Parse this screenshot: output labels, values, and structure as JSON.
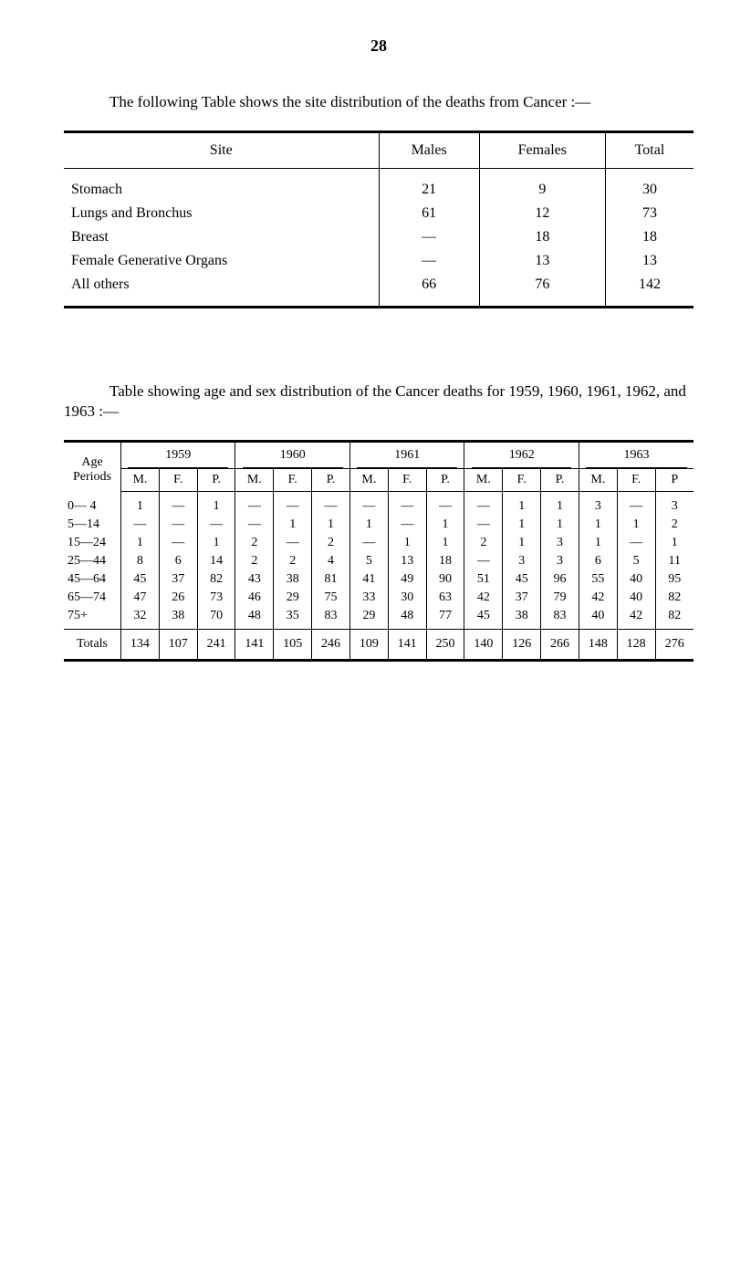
{
  "page_number": "28",
  "intro1": "The following Table shows the site distribution of the deaths from Cancer :—",
  "table1": {
    "headers": {
      "site": "Site",
      "males": "Males",
      "females": "Females",
      "total": "Total"
    },
    "rows": [
      {
        "site": "Stomach",
        "males": "21",
        "females": "9",
        "total": "30"
      },
      {
        "site": "Lungs and Bronchus",
        "males": "61",
        "females": "12",
        "total": "73"
      },
      {
        "site": "Breast",
        "males": "—",
        "females": "18",
        "total": "18"
      },
      {
        "site": "Female Generative Organs",
        "males": "—",
        "females": "13",
        "total": "13"
      },
      {
        "site": "All others",
        "males": "66",
        "females": "76",
        "total": "142"
      }
    ]
  },
  "intro2": "Table showing age and sex distribution of the Cancer deaths for 1959, 1960, 1961, 1962, and 1963 :—",
  "table2": {
    "age_header": "Age Periods",
    "years": [
      "1959",
      "1960",
      "1961",
      "1962",
      "1963"
    ],
    "sub_headers": [
      "M.",
      "F.",
      "P.",
      "M.",
      "F.",
      "P.",
      "M.",
      "F.",
      "P.",
      "M.",
      "F.",
      "P.",
      "M.",
      "F.",
      "P"
    ],
    "rows": [
      {
        "age": "0— 4",
        "cells": [
          "1",
          "—",
          "1",
          "—",
          "—",
          "—",
          "—",
          "—",
          "—",
          "—",
          "1",
          "1",
          "3",
          "—",
          "3"
        ]
      },
      {
        "age": "5—14",
        "cells": [
          "—",
          "—",
          "—",
          "—",
          "1",
          "1",
          "1",
          "—",
          "1",
          "—",
          "1",
          "1",
          "1",
          "1",
          "2"
        ]
      },
      {
        "age": "15—24",
        "cells": [
          "1",
          "—",
          "1",
          "2",
          "—",
          "2",
          "—",
          "1",
          "1",
          "2",
          "1",
          "3",
          "1",
          "—",
          "1"
        ]
      },
      {
        "age": "25—44",
        "cells": [
          "8",
          "6",
          "14",
          "2",
          "2",
          "4",
          "5",
          "13",
          "18",
          "—",
          "3",
          "3",
          "6",
          "5",
          "11"
        ]
      },
      {
        "age": "45—64",
        "cells": [
          "45",
          "37",
          "82",
          "43",
          "38",
          "81",
          "41",
          "49",
          "90",
          "51",
          "45",
          "96",
          "55",
          "40",
          "95"
        ]
      },
      {
        "age": "65—74",
        "cells": [
          "47",
          "26",
          "73",
          "46",
          "29",
          "75",
          "33",
          "30",
          "63",
          "42",
          "37",
          "79",
          "42",
          "40",
          "82"
        ]
      },
      {
        "age": "75+",
        "cells": [
          "32",
          "38",
          "70",
          "48",
          "35",
          "83",
          "29",
          "48",
          "77",
          "45",
          "38",
          "83",
          "40",
          "42",
          "82"
        ]
      }
    ],
    "totals_label": "Totals",
    "totals": [
      "134",
      "107",
      "241",
      "141",
      "105",
      "246",
      "109",
      "141",
      "250",
      "140",
      "126",
      "266",
      "148",
      "128",
      "276"
    ]
  }
}
